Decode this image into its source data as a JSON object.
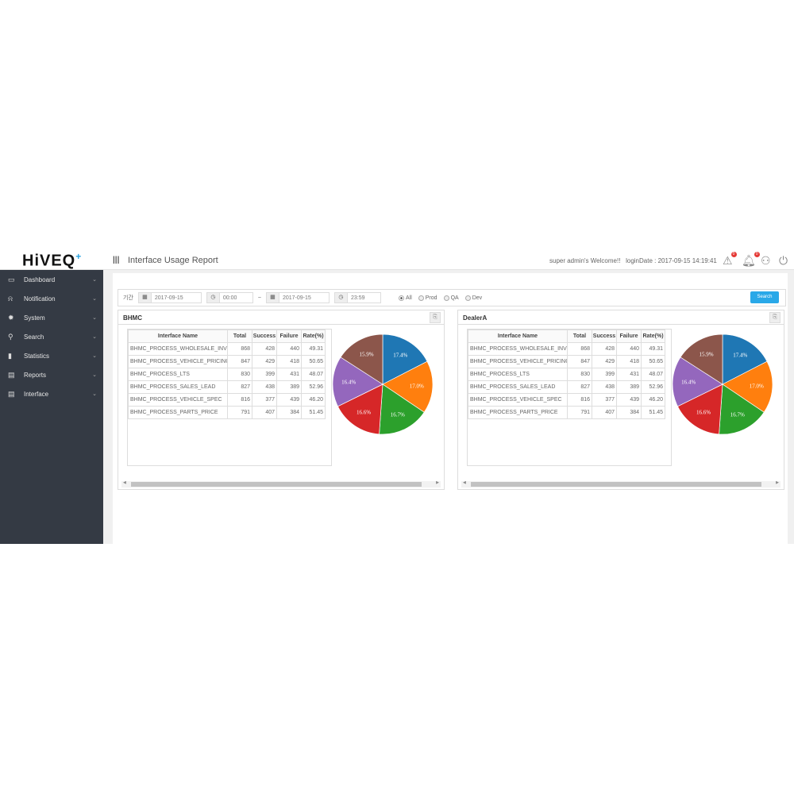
{
  "header": {
    "logo": "HiVEQ",
    "logo_plus": "+",
    "menu_icon": "menu-icon",
    "title": "Interface Usage Report",
    "welcome": "super admin's Welcome!!",
    "login_date": "loginDate : 2017-09-15 14:19:41",
    "alert_badge": "0",
    "notification_badge": "0"
  },
  "sidebar": {
    "items": [
      {
        "label": "Dashboard",
        "icon": "monitor-icon"
      },
      {
        "label": "Notification",
        "icon": "bell-icon"
      },
      {
        "label": "System",
        "icon": "gear-icon"
      },
      {
        "label": "Search",
        "icon": "search-icon"
      },
      {
        "label": "Statistics",
        "icon": "chart-icon"
      },
      {
        "label": "Reports",
        "icon": "file-icon"
      },
      {
        "label": "Interface",
        "icon": "file-icon"
      }
    ]
  },
  "filter": {
    "period_label": "기간",
    "start_date": "2017-09-15",
    "start_time": "00:00",
    "separator": "~",
    "end_date": "2017-09-15",
    "end_time": "23:59",
    "radios": [
      {
        "label": "All",
        "checked": true
      },
      {
        "label": "Prod",
        "checked": false
      },
      {
        "label": "QA",
        "checked": false
      },
      {
        "label": "Dev",
        "checked": false
      }
    ],
    "search_label": "Search"
  },
  "table_columns": [
    "Interface Name",
    "Total",
    "Success",
    "Failure",
    "Rate(%)"
  ],
  "panels": [
    {
      "title": "BHMC",
      "rows": [
        [
          "BHMC_PROCESS_WHOLESALE_INVC",
          "868",
          "428",
          "440",
          "49.31"
        ],
        [
          "BHMC_PROCESS_VEHICLE_PRICING",
          "847",
          "429",
          "418",
          "50.65"
        ],
        [
          "BHMC_PROCESS_LTS",
          "830",
          "399",
          "431",
          "48.07"
        ],
        [
          "BHMC_PROCESS_SALES_LEAD",
          "827",
          "438",
          "389",
          "52.96"
        ],
        [
          "BHMC_PROCESS_VEHICLE_SPEC",
          "816",
          "377",
          "439",
          "46.20"
        ],
        [
          "BHMC_PROCESS_PARTS_PRICE",
          "791",
          "407",
          "384",
          "51.45"
        ]
      ]
    },
    {
      "title": "DealerA",
      "rows": [
        [
          "BHMC_PROCESS_WHOLESALE_INVC",
          "868",
          "428",
          "440",
          "49.31"
        ],
        [
          "BHMC_PROCESS_VEHICLE_PRICING",
          "847",
          "429",
          "418",
          "50.65"
        ],
        [
          "BHMC_PROCESS_LTS",
          "830",
          "399",
          "431",
          "48.07"
        ],
        [
          "BHMC_PROCESS_SALES_LEAD",
          "827",
          "438",
          "389",
          "52.96"
        ],
        [
          "BHMC_PROCESS_VEHICLE_SPEC",
          "816",
          "377",
          "439",
          "46.20"
        ],
        [
          "BHMC_PROCESS_PARTS_PRICE",
          "791",
          "407",
          "384",
          "51.45"
        ]
      ]
    }
  ],
  "chart_data": [
    {
      "type": "pie",
      "values": [
        868,
        847,
        830,
        827,
        816,
        791
      ],
      "labels": [
        "17.4%",
        "17.0%",
        "16.7%",
        "16.6%",
        "16.4%",
        "15.9%"
      ],
      "colors": [
        "#1f77b4",
        "#ff7f0e",
        "#2ca02c",
        "#d62728",
        "#9467bd",
        "#8c564b"
      ]
    },
    {
      "type": "pie",
      "values": [
        868,
        847,
        830,
        827,
        816,
        791
      ],
      "labels": [
        "17.4%",
        "17.0%",
        "16.7%",
        "16.6%",
        "16.4%",
        "15.9%"
      ],
      "colors": [
        "#1f77b4",
        "#ff7f0e",
        "#2ca02c",
        "#d62728",
        "#9467bd",
        "#8c564b"
      ]
    }
  ]
}
